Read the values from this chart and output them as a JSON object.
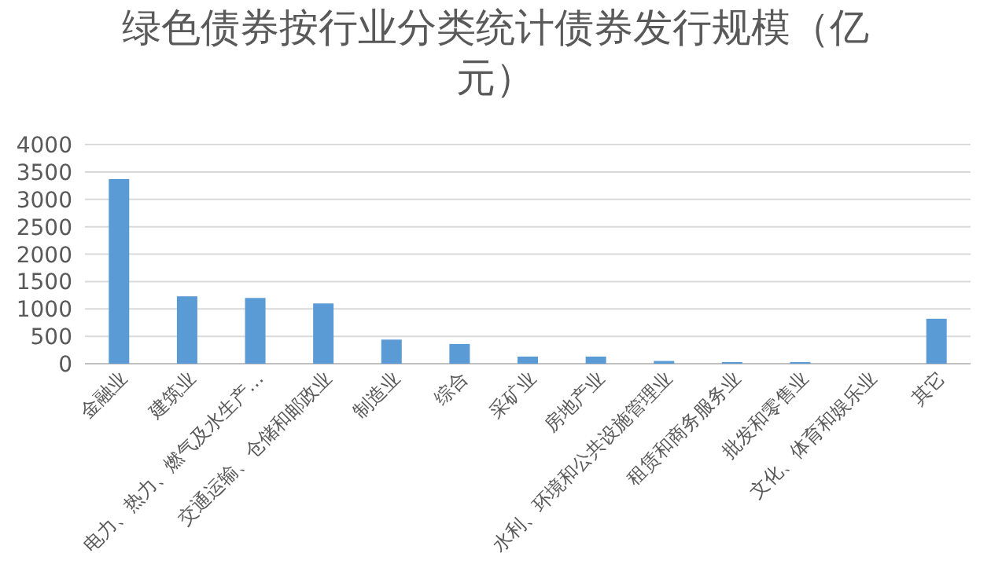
{
  "chart_data": {
    "type": "bar",
    "title": "绿色债券按行业分类统计债券发行规模（亿元）",
    "categories": [
      "金融业",
      "建筑业",
      "电力、热力、燃气及水生产…",
      "交通运输、仓储和邮政业",
      "制造业",
      "综合",
      "采矿业",
      "房地产业",
      "水利、环境和公共设施管理业",
      "租赁和商务服务业",
      "批发和零售业",
      "文化、体育和娱乐业",
      "其它"
    ],
    "values": [
      3370,
      1230,
      1200,
      1100,
      440,
      360,
      130,
      130,
      50,
      30,
      30,
      0,
      820
    ],
    "color": "#5b9bd5",
    "ylim": [
      0,
      4000
    ],
    "yticks": [
      0,
      500,
      1000,
      1500,
      2000,
      2500,
      3000,
      3500,
      4000
    ],
    "grid": "y"
  }
}
